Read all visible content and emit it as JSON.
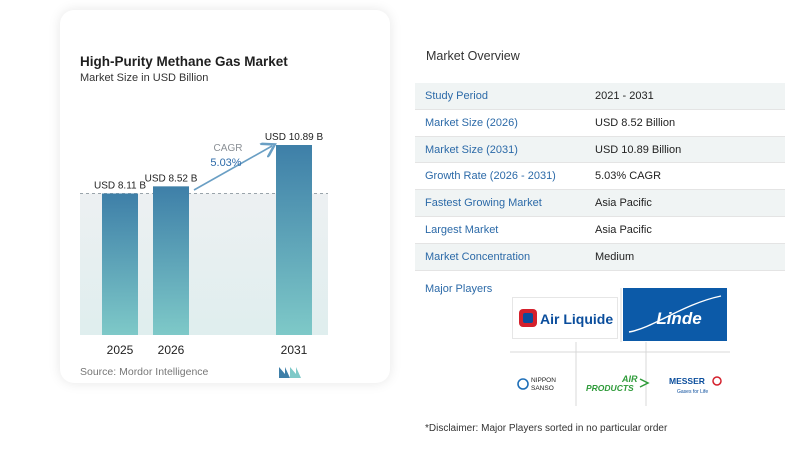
{
  "chart": {
    "title": "High-Purity Methane Gas Market",
    "subtitle": "Market Size in USD Billion",
    "source": "Source:  Mordor Intelligence",
    "cagr_label": "CAGR",
    "cagr_value": "5.03%"
  },
  "chart_data": {
    "type": "bar",
    "categories": [
      "2025",
      "2026",
      "2031"
    ],
    "values": [
      8.11,
      8.52,
      10.89
    ],
    "data_labels": [
      "USD 8.11 B",
      "USD 8.52 B",
      "USD 10.89 B"
    ],
    "title": "High-Purity Methane Gas Market",
    "subtitle": "Market Size in USD Billion",
    "ylim": [
      0,
      10.89
    ],
    "reference_line_value": 8.11,
    "grid": false,
    "colors": {
      "bar_top": "#3e7fa8",
      "bar_bottom": "#7ec9c8",
      "arrow": "#6a9fc4",
      "cagr": "#2c6aa8"
    }
  },
  "overview": {
    "title": "Market Overview",
    "rows": [
      {
        "label": "Study Period",
        "value": "2021 - 2031"
      },
      {
        "label": "Market Size (2026)",
        "value": "USD 8.52 Billion"
      },
      {
        "label": "Market Size (2031)",
        "value": "USD 10.89 Billion"
      },
      {
        "label": "Growth Rate (2026 - 2031)",
        "value": "5.03% CAGR"
      },
      {
        "label": "Fastest Growing Market",
        "value": "Asia Pacific"
      },
      {
        "label": "Largest Market",
        "value": "Asia Pacific"
      },
      {
        "label": "Market Concentration",
        "value": "Medium"
      }
    ],
    "players_title": "Major Players",
    "players": [
      {
        "name": "Air Liquide",
        "text": "Air Liquide",
        "color": "#0a4d9c",
        "accent": "#d4202c"
      },
      {
        "name": "Linde",
        "text": "Linde",
        "color": "#ffffff",
        "background": "#0c5aa8"
      },
      {
        "name": "Nippon Sanso",
        "text": [
          "NIPPON",
          "SANSO"
        ],
        "color": "#222222"
      },
      {
        "name": "Air Products",
        "text": [
          "AIR",
          "PRODUCTS"
        ],
        "color": "#2f9b3a"
      },
      {
        "name": "Messer",
        "text": "MESSER",
        "tagline": "Gases for Life",
        "color": "#0a4d9c",
        "accent": "#d4202c"
      }
    ],
    "disclaimer": "*Disclaimer: Major Players sorted in no particular order"
  }
}
